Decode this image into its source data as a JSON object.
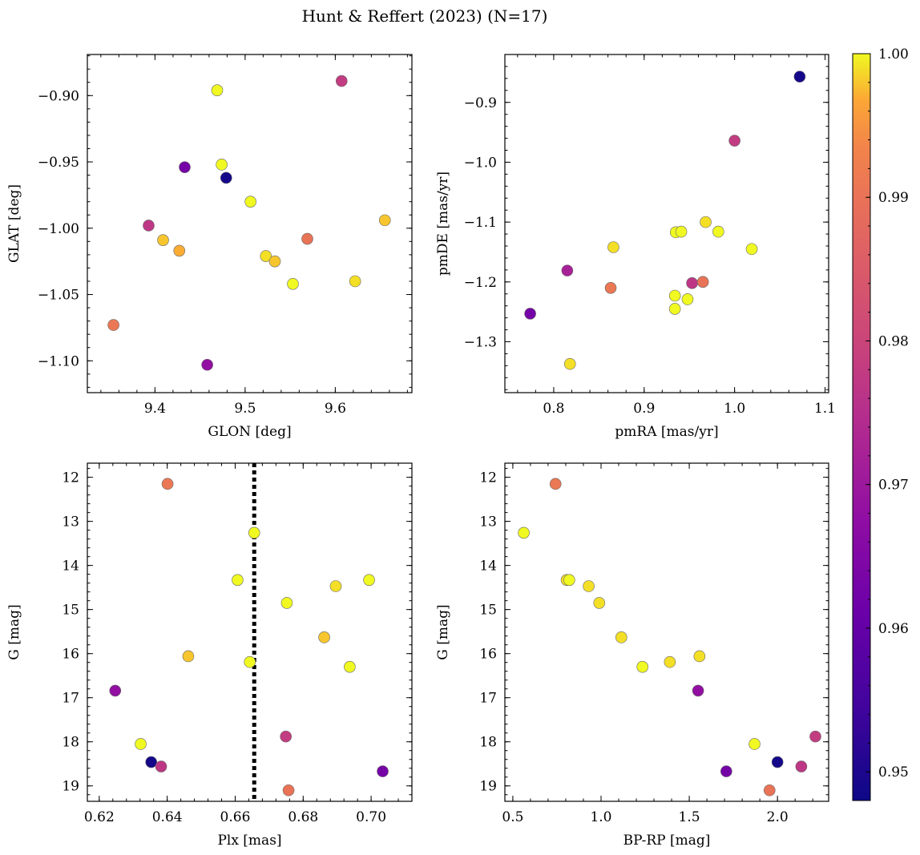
{
  "title": "Hunt & Reffert (2023) (N=17)",
  "colorbar": {
    "min": 0.948,
    "max": 1.0,
    "ticks": [
      0.95,
      0.96,
      0.97,
      0.98,
      0.99,
      1.0
    ],
    "tick_labels": [
      "0.95",
      "0.96",
      "0.97",
      "0.98",
      "0.99",
      "1.00"
    ],
    "colormap": "plasma"
  },
  "chart_data": [
    {
      "type": "scatter",
      "xlabel": "GLON [deg]",
      "ylabel": "GLAT [deg]",
      "xlim": [
        9.325,
        9.685
      ],
      "ylim": [
        -1.124,
        -0.869
      ],
      "invert_y": false,
      "xticks": [
        9.4,
        9.5,
        9.6
      ],
      "xtick_labels": [
        "9.4",
        "9.5",
        "9.6"
      ],
      "yticks": [
        -0.9,
        -0.95,
        -1.0,
        -1.05,
        -1.1
      ],
      "ytick_labels": [
        "−0.90",
        "−0.95",
        "−1.00",
        "−1.05",
        "−1.10"
      ],
      "points": [
        {
          "x": 9.607,
          "y": -0.889,
          "c": 0.978
        },
        {
          "x": 9.469,
          "y": -0.896,
          "c": 1.0
        },
        {
          "x": 9.474,
          "y": -0.952,
          "c": 1.0
        },
        {
          "x": 9.433,
          "y": -0.954,
          "c": 0.963
        },
        {
          "x": 9.479,
          "y": -0.962,
          "c": 0.949
        },
        {
          "x": 9.506,
          "y": -0.98,
          "c": 1.0
        },
        {
          "x": 9.655,
          "y": -0.994,
          "c": 0.998
        },
        {
          "x": 9.393,
          "y": -0.998,
          "c": 0.977
        },
        {
          "x": 9.569,
          "y": -1.008,
          "c": 0.99
        },
        {
          "x": 9.409,
          "y": -1.009,
          "c": 0.998
        },
        {
          "x": 9.427,
          "y": -1.017,
          "c": 0.997
        },
        {
          "x": 9.523,
          "y": -1.021,
          "c": 0.999
        },
        {
          "x": 9.533,
          "y": -1.025,
          "c": 0.998
        },
        {
          "x": 9.553,
          "y": -1.042,
          "c": 1.0
        },
        {
          "x": 9.622,
          "y": -1.04,
          "c": 0.999
        },
        {
          "x": 9.354,
          "y": -1.073,
          "c": 0.991
        },
        {
          "x": 9.458,
          "y": -1.103,
          "c": 0.968
        }
      ]
    },
    {
      "type": "scatter",
      "xlabel": "pmRA [mas/yr]",
      "ylabel": "pmDE [mas/yr]",
      "xlim": [
        0.746,
        1.104
      ],
      "ylim": [
        -1.385,
        -0.82
      ],
      "invert_y": false,
      "xticks": [
        0.8,
        0.9,
        1.0,
        1.1
      ],
      "xtick_labels": [
        "0.8",
        "0.9",
        "1.0",
        "1.1"
      ],
      "yticks": [
        -0.9,
        -1.0,
        -1.1,
        -1.2,
        -1.3
      ],
      "ytick_labels": [
        "−0.9",
        "−1.0",
        "−1.1",
        "−1.2",
        "−1.3"
      ],
      "points": [
        {
          "x": 1.072,
          "y": -0.857,
          "c": 0.949
        },
        {
          "x": 1.0,
          "y": -0.964,
          "c": 0.978
        },
        {
          "x": 0.968,
          "y": -1.1,
          "c": 0.999
        },
        {
          "x": 0.935,
          "y": -1.117,
          "c": 1.0
        },
        {
          "x": 0.941,
          "y": -1.116,
          "c": 1.0
        },
        {
          "x": 0.982,
          "y": -1.116,
          "c": 1.0
        },
        {
          "x": 1.019,
          "y": -1.145,
          "c": 1.0
        },
        {
          "x": 0.866,
          "y": -1.142,
          "c": 0.999
        },
        {
          "x": 0.815,
          "y": -1.181,
          "c": 0.972
        },
        {
          "x": 0.953,
          "y": -1.202,
          "c": 0.977
        },
        {
          "x": 0.965,
          "y": -1.2,
          "c": 0.99
        },
        {
          "x": 0.863,
          "y": -1.21,
          "c": 0.991
        },
        {
          "x": 0.934,
          "y": -1.223,
          "c": 1.0
        },
        {
          "x": 0.948,
          "y": -1.229,
          "c": 1.0
        },
        {
          "x": 0.934,
          "y": -1.245,
          "c": 1.0
        },
        {
          "x": 0.774,
          "y": -1.253,
          "c": 0.963
        },
        {
          "x": 0.818,
          "y": -1.337,
          "c": 0.999
        }
      ]
    },
    {
      "type": "scatter",
      "xlabel": "Plx [mas]",
      "ylabel": "G [mag]",
      "xlim": [
        0.6165,
        0.712
      ],
      "ylim": [
        11.68,
        19.35
      ],
      "invert_y": true,
      "vline": {
        "x": 0.6656,
        "style": "dotted"
      },
      "xticks": [
        0.62,
        0.64,
        0.66,
        0.68,
        0.7
      ],
      "xtick_labels": [
        "0.62",
        "0.64",
        "0.66",
        "0.68",
        "0.70"
      ],
      "yticks": [
        12,
        13,
        14,
        15,
        16,
        17,
        18,
        19
      ],
      "ytick_labels": [
        "12",
        "13",
        "14",
        "15",
        "16",
        "17",
        "18",
        "19"
      ],
      "points": [
        {
          "x": 0.6401,
          "y": 12.15,
          "c": 0.991
        },
        {
          "x": 0.6656,
          "y": 13.26,
          "c": 1.0
        },
        {
          "x": 0.6607,
          "y": 14.33,
          "c": 1.0
        },
        {
          "x": 0.6994,
          "y": 14.33,
          "c": 1.0
        },
        {
          "x": 0.6896,
          "y": 14.47,
          "c": 0.999
        },
        {
          "x": 0.6752,
          "y": 14.85,
          "c": 1.0
        },
        {
          "x": 0.6862,
          "y": 15.63,
          "c": 0.998
        },
        {
          "x": 0.6462,
          "y": 16.06,
          "c": 0.998
        },
        {
          "x": 0.6643,
          "y": 16.19,
          "c": 1.0
        },
        {
          "x": 0.6937,
          "y": 16.3,
          "c": 1.0
        },
        {
          "x": 0.6247,
          "y": 16.84,
          "c": 0.968
        },
        {
          "x": 0.6749,
          "y": 17.88,
          "c": 0.978
        },
        {
          "x": 0.6322,
          "y": 18.05,
          "c": 1.0
        },
        {
          "x": 0.6353,
          "y": 18.46,
          "c": 0.949
        },
        {
          "x": 0.6382,
          "y": 18.56,
          "c": 0.977
        },
        {
          "x": 0.7034,
          "y": 18.67,
          "c": 0.963
        },
        {
          "x": 0.6757,
          "y": 19.1,
          "c": 0.99
        }
      ]
    },
    {
      "type": "scatter",
      "xlabel": "BP-RP [mag]",
      "ylabel": "G [mag]",
      "xlim": [
        0.455,
        2.29
      ],
      "ylim": [
        11.68,
        19.35
      ],
      "invert_y": true,
      "xticks": [
        0.5,
        1.0,
        1.5,
        2.0
      ],
      "xtick_labels": [
        "0.5",
        "1.0",
        "1.5",
        "2.0"
      ],
      "yticks": [
        12,
        13,
        14,
        15,
        16,
        17,
        18,
        19
      ],
      "ytick_labels": [
        "12",
        "13",
        "14",
        "15",
        "16",
        "17",
        "18",
        "19"
      ],
      "points": [
        {
          "x": 0.742,
          "y": 12.15,
          "c": 0.991
        },
        {
          "x": 0.562,
          "y": 13.26,
          "c": 1.0
        },
        {
          "x": 0.805,
          "y": 14.33,
          "c": 0.999
        },
        {
          "x": 0.82,
          "y": 14.33,
          "c": 1.0
        },
        {
          "x": 0.93,
          "y": 14.47,
          "c": 0.999
        },
        {
          "x": 0.99,
          "y": 14.85,
          "c": 0.999
        },
        {
          "x": 1.115,
          "y": 15.63,
          "c": 0.999
        },
        {
          "x": 1.558,
          "y": 16.06,
          "c": 0.999
        },
        {
          "x": 1.39,
          "y": 16.19,
          "c": 0.999
        },
        {
          "x": 1.235,
          "y": 16.3,
          "c": 1.0
        },
        {
          "x": 1.55,
          "y": 16.84,
          "c": 0.968
        },
        {
          "x": 2.215,
          "y": 17.88,
          "c": 0.978
        },
        {
          "x": 1.87,
          "y": 18.05,
          "c": 1.0
        },
        {
          "x": 2.0,
          "y": 18.46,
          "c": 0.949
        },
        {
          "x": 2.135,
          "y": 18.56,
          "c": 0.977
        },
        {
          "x": 1.71,
          "y": 18.67,
          "c": 0.963
        },
        {
          "x": 1.955,
          "y": 19.1,
          "c": 0.99
        }
      ]
    }
  ]
}
